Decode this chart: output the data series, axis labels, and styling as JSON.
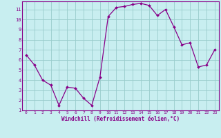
{
  "x": [
    0,
    1,
    2,
    3,
    4,
    5,
    6,
    7,
    8,
    9,
    10,
    11,
    12,
    13,
    14,
    15,
    16,
    17,
    18,
    19,
    20,
    21,
    22,
    23
  ],
  "y": [
    6.5,
    5.5,
    4.0,
    3.5,
    1.5,
    3.3,
    3.2,
    2.2,
    1.5,
    4.3,
    10.3,
    11.2,
    11.3,
    11.5,
    11.6,
    11.4,
    10.4,
    11.0,
    9.3,
    7.5,
    7.7,
    5.3,
    5.5,
    7.0
  ],
  "xlim": [
    -0.5,
    23.5
  ],
  "ylim": [
    1,
    11.8
  ],
  "xticks": [
    0,
    1,
    2,
    3,
    4,
    5,
    6,
    7,
    8,
    9,
    10,
    11,
    12,
    13,
    14,
    15,
    16,
    17,
    18,
    19,
    20,
    21,
    22,
    23
  ],
  "yticks": [
    1,
    2,
    3,
    4,
    5,
    6,
    7,
    8,
    9,
    10,
    11
  ],
  "xlabel": "Windchill (Refroidissement éolien,°C)",
  "line_color": "#880088",
  "marker_color": "#880088",
  "bg_color": "#c8eef0",
  "grid_color": "#99cccc",
  "axis_label_color": "#880088",
  "tick_color": "#880088",
  "spine_color": "#880088"
}
